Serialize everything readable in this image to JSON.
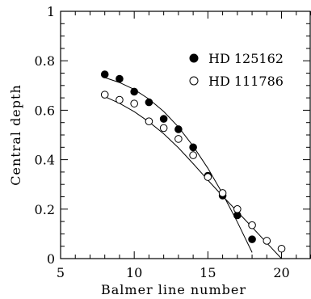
{
  "chart_data": {
    "type": "scatter",
    "title": "",
    "xlabel": "Balmer line number",
    "ylabel": "Central depth",
    "xlim": [
      5,
      22
    ],
    "ylim": [
      0,
      1
    ],
    "xticks": [
      5,
      10,
      15,
      20
    ],
    "yticks": [
      0,
      0.2,
      0.4,
      0.6,
      0.8,
      1
    ],
    "xtick_labels": [
      "5",
      "10",
      "15",
      "20"
    ],
    "ytick_labels": [
      "0",
      "0.2",
      "0.4",
      "0.6",
      "0.8",
      "1"
    ],
    "grid": false,
    "legend_position": "top-right",
    "series": [
      {
        "name": "HD 125162",
        "marker": "filled-circle",
        "color": "#000000",
        "x": [
          8,
          9,
          10,
          11,
          12,
          13,
          14,
          15,
          16,
          17,
          18
        ],
        "y": [
          0.745,
          0.727,
          0.675,
          0.632,
          0.565,
          0.523,
          0.45,
          0.335,
          0.255,
          0.175,
          0.078
        ],
        "fit_x": [
          8,
          9,
          10,
          11,
          12,
          13,
          14,
          15,
          16,
          17,
          18
        ],
        "fit_y": [
          0.732,
          0.712,
          0.684,
          0.645,
          0.595,
          0.532,
          0.455,
          0.365,
          0.262,
          0.148,
          0.025
        ]
      },
      {
        "name": "HD 111786",
        "marker": "open-circle",
        "color": "#000000",
        "x": [
          8,
          9,
          10,
          11,
          12,
          13,
          14,
          15,
          16,
          17,
          18,
          19,
          20
        ],
        "y": [
          0.663,
          0.642,
          0.627,
          0.555,
          0.528,
          0.484,
          0.418,
          0.33,
          0.265,
          0.2,
          0.135,
          0.072,
          0.04
        ],
        "fit_x": [
          8,
          9,
          10,
          11,
          12,
          13,
          14,
          15,
          16,
          17,
          18,
          19,
          20
        ],
        "fit_y": [
          0.655,
          0.628,
          0.594,
          0.553,
          0.505,
          0.448,
          0.384,
          0.317,
          0.253,
          0.19,
          0.127,
          0.063,
          0.0
        ]
      }
    ]
  }
}
